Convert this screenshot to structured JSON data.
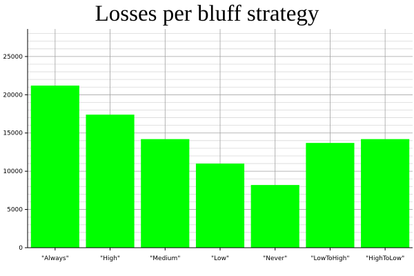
{
  "chart_data": {
    "type": "bar",
    "title": "Losses per bluff strategy",
    "categories": [
      "\"Always\"",
      "\"High\"",
      "\"Medium\"",
      "\"Low\"",
      "\"Never\"",
      "\"LowToHigh\"",
      "\"HighToLow\""
    ],
    "values": [
      21200,
      17400,
      14200,
      11000,
      8200,
      13700,
      14200
    ],
    "xlabel": "",
    "ylabel": "",
    "ylim": [
      0,
      28600
    ],
    "yticks": [
      0,
      5000,
      10000,
      15000,
      20000,
      25000
    ],
    "grid": true,
    "bar_color": "#00ff00"
  }
}
